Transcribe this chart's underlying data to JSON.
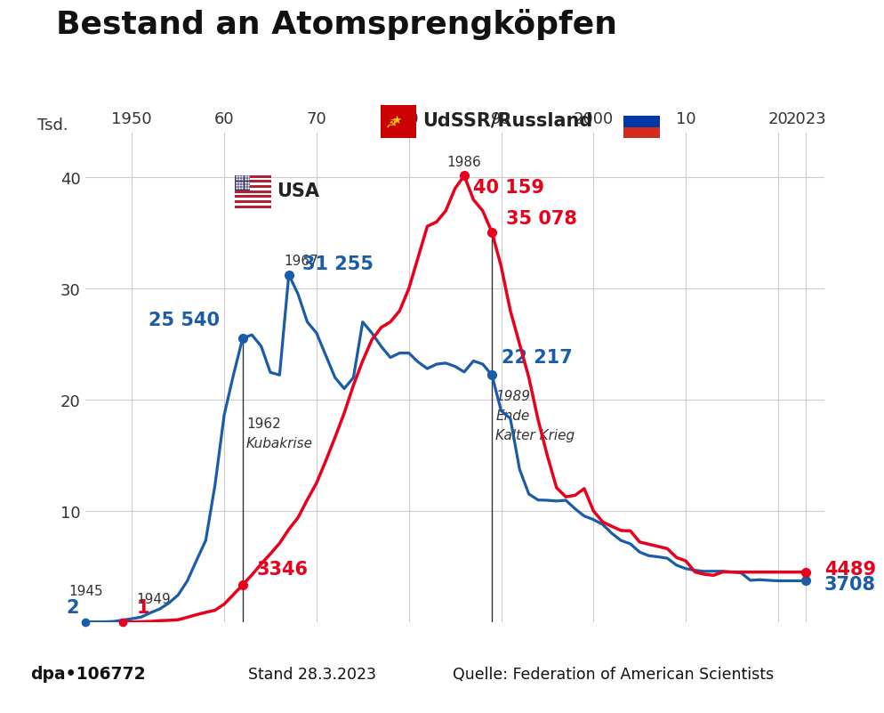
{
  "title": "Bestand an Atomsprengköpfen",
  "background_color": "#ffffff",
  "plot_bg_color": "#ffffff",
  "footer_bg_color": "#d8d8d8",
  "footer_text_left": "dpa•106772",
  "footer_text_mid": "Stand 28.3.2023",
  "footer_text_right": "Quelle: Federation of American Scientists",
  "grid_color": "#cccccc",
  "usa_color": "#1a5ca8",
  "ussr_color": "#e8001c",
  "usa_data": {
    "years": [
      1945,
      1946,
      1947,
      1948,
      1949,
      1950,
      1951,
      1952,
      1953,
      1954,
      1955,
      1956,
      1957,
      1958,
      1959,
      1960,
      1961,
      1962,
      1963,
      1964,
      1965,
      1966,
      1967,
      1968,
      1969,
      1970,
      1971,
      1972,
      1973,
      1974,
      1975,
      1976,
      1977,
      1978,
      1979,
      1980,
      1981,
      1982,
      1983,
      1984,
      1985,
      1986,
      1987,
      1988,
      1989,
      1990,
      1991,
      1992,
      1993,
      1994,
      1995,
      1996,
      1997,
      1998,
      1999,
      2000,
      2001,
      2002,
      2003,
      2004,
      2005,
      2006,
      2007,
      2008,
      2009,
      2010,
      2011,
      2012,
      2013,
      2014,
      2015,
      2016,
      2017,
      2018,
      2019,
      2020,
      2021,
      2022,
      2023
    ],
    "values": [
      2,
      9,
      13,
      50,
      170,
      299,
      438,
      832,
      1169,
      1703,
      2422,
      3692,
      5543,
      7345,
      12305,
      18638,
      22229,
      25540,
      25834,
      24820,
      22458,
      22229,
      31255,
      29500,
      27000,
      26000,
      24000,
      22000,
      21000,
      22000,
      27000,
      26000,
      24800,
      23800,
      24200,
      24200,
      23400,
      22800,
      23200,
      23300,
      23000,
      22500,
      23490,
      23205,
      22217,
      19008,
      18306,
      13731,
      11519,
      10979,
      10953,
      10886,
      10953,
      10194,
      9534,
      9216,
      8777,
      7971,
      7328,
      7034,
      6290,
      5966,
      5865,
      5736,
      5113,
      4802,
      4650,
      4560,
      4570,
      4571,
      4500,
      4418,
      3750,
      3805,
      3750,
      3708,
      3708,
      3708,
      3708
    ]
  },
  "ussr_data": {
    "years": [
      1949,
      1950,
      1951,
      1952,
      1953,
      1954,
      1955,
      1956,
      1957,
      1958,
      1959,
      1960,
      1961,
      1962,
      1963,
      1964,
      1965,
      1966,
      1967,
      1968,
      1969,
      1970,
      1971,
      1972,
      1973,
      1974,
      1975,
      1976,
      1977,
      1978,
      1979,
      1980,
      1981,
      1982,
      1983,
      1984,
      1985,
      1986,
      1987,
      1988,
      1989,
      1990,
      1991,
      1992,
      1993,
      1994,
      1995,
      1996,
      1997,
      1998,
      1999,
      2000,
      2001,
      2002,
      2003,
      2004,
      2005,
      2006,
      2007,
      2008,
      2009,
      2010,
      2011,
      2012,
      2013,
      2014,
      2015,
      2016,
      2017,
      2018,
      2019,
      2020,
      2021,
      2022,
      2023
    ],
    "values": [
      1,
      5,
      25,
      50,
      120,
      150,
      200,
      426,
      660,
      869,
      1060,
      1605,
      2471,
      3346,
      4238,
      5221,
      6129,
      7089,
      8339,
      9399,
      11000,
      12500,
      14500,
      16600,
      18800,
      21300,
      23500,
      25400,
      26500,
      27000,
      28000,
      30000,
      32800,
      35600,
      36000,
      37000,
      39000,
      40159,
      38000,
      37000,
      35078,
      32000,
      28000,
      25000,
      22000,
      18200,
      14978,
      12085,
      11264,
      11400,
      12000,
      10000,
      9000,
      8600,
      8232,
      8200,
      7200,
      7000,
      6800,
      6600,
      5800,
      5500,
      4500,
      4300,
      4200,
      4500,
      4490,
      4490,
      4490,
      4490,
      4490,
      4490,
      4489,
      4489,
      4489
    ]
  }
}
